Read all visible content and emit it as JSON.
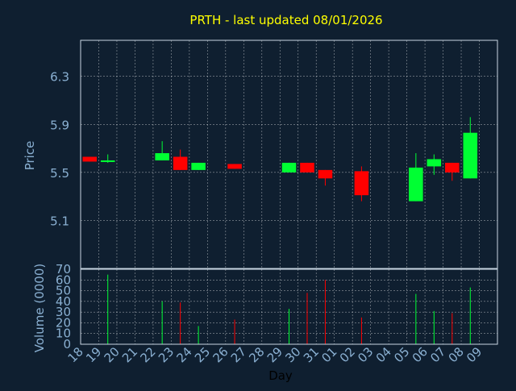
{
  "chart_data": {
    "type": "candlestick",
    "title": "PRTH - last updated 08/01/2026",
    "xlabel": "Day",
    "price_panel": {
      "ylabel": "Price",
      "yticks": [
        5.1,
        5.5,
        5.9,
        6.3
      ],
      "ylim": [
        4.7,
        6.6
      ],
      "grid": true
    },
    "volume_panel": {
      "ylabel": "Volume (0000)",
      "yticks": [
        0,
        10,
        20,
        30,
        40,
        50,
        60,
        70
      ],
      "ylim": [
        0,
        70
      ],
      "grid": true
    },
    "x_tick_labels": [
      "18",
      "19",
      "20",
      "21",
      "22",
      "23",
      "24",
      "25",
      "26",
      "27",
      "28",
      "29",
      "30",
      "31",
      "01",
      "02",
      "03",
      "04",
      "05",
      "06",
      "07",
      "08",
      "09"
    ],
    "colors": {
      "background": "#0f1f30",
      "up": "#00ff33",
      "down": "#ff0000",
      "grid": "#ffffff",
      "axis_text": "#8ab0d2",
      "title": "#ffff00",
      "frame": "#c8d6e2"
    },
    "candles": [
      {
        "day": "18",
        "open": 5.63,
        "close": 5.59,
        "high": 5.63,
        "low": 5.59,
        "volume": 0
      },
      {
        "day": "19",
        "open": 5.59,
        "close": 5.6,
        "high": 5.65,
        "low": 5.58,
        "volume": 65
      },
      {
        "day": "22",
        "open": 5.6,
        "close": 5.66,
        "high": 5.76,
        "low": 5.6,
        "volume": 40
      },
      {
        "day": "23",
        "open": 5.63,
        "close": 5.52,
        "high": 5.69,
        "low": 5.52,
        "volume": 39
      },
      {
        "day": "24",
        "open": 5.52,
        "close": 5.58,
        "high": 5.58,
        "low": 5.52,
        "volume": 17
      },
      {
        "day": "26",
        "open": 5.57,
        "close": 5.53,
        "high": 5.57,
        "low": 5.53,
        "volume": 23
      },
      {
        "day": "29",
        "open": 5.5,
        "close": 5.58,
        "high": 5.58,
        "low": 5.5,
        "volume": 33
      },
      {
        "day": "30",
        "open": 5.58,
        "close": 5.5,
        "high": 5.58,
        "low": 5.5,
        "volume": 48
      },
      {
        "day": "31",
        "open": 5.52,
        "close": 5.45,
        "high": 5.52,
        "low": 5.39,
        "volume": 60
      },
      {
        "day": "02",
        "open": 5.51,
        "close": 5.31,
        "high": 5.55,
        "low": 5.26,
        "volume": 25
      },
      {
        "day": "05",
        "open": 5.26,
        "close": 5.54,
        "high": 5.66,
        "low": 5.26,
        "volume": 47
      },
      {
        "day": "06",
        "open": 5.55,
        "close": 5.61,
        "high": 5.65,
        "low": 5.48,
        "volume": 31
      },
      {
        "day": "07",
        "open": 5.58,
        "close": 5.5,
        "high": 5.58,
        "low": 5.43,
        "volume": 29
      },
      {
        "day": "08",
        "open": 5.45,
        "close": 5.83,
        "high": 5.96,
        "low": 5.45,
        "volume": 53
      }
    ]
  }
}
